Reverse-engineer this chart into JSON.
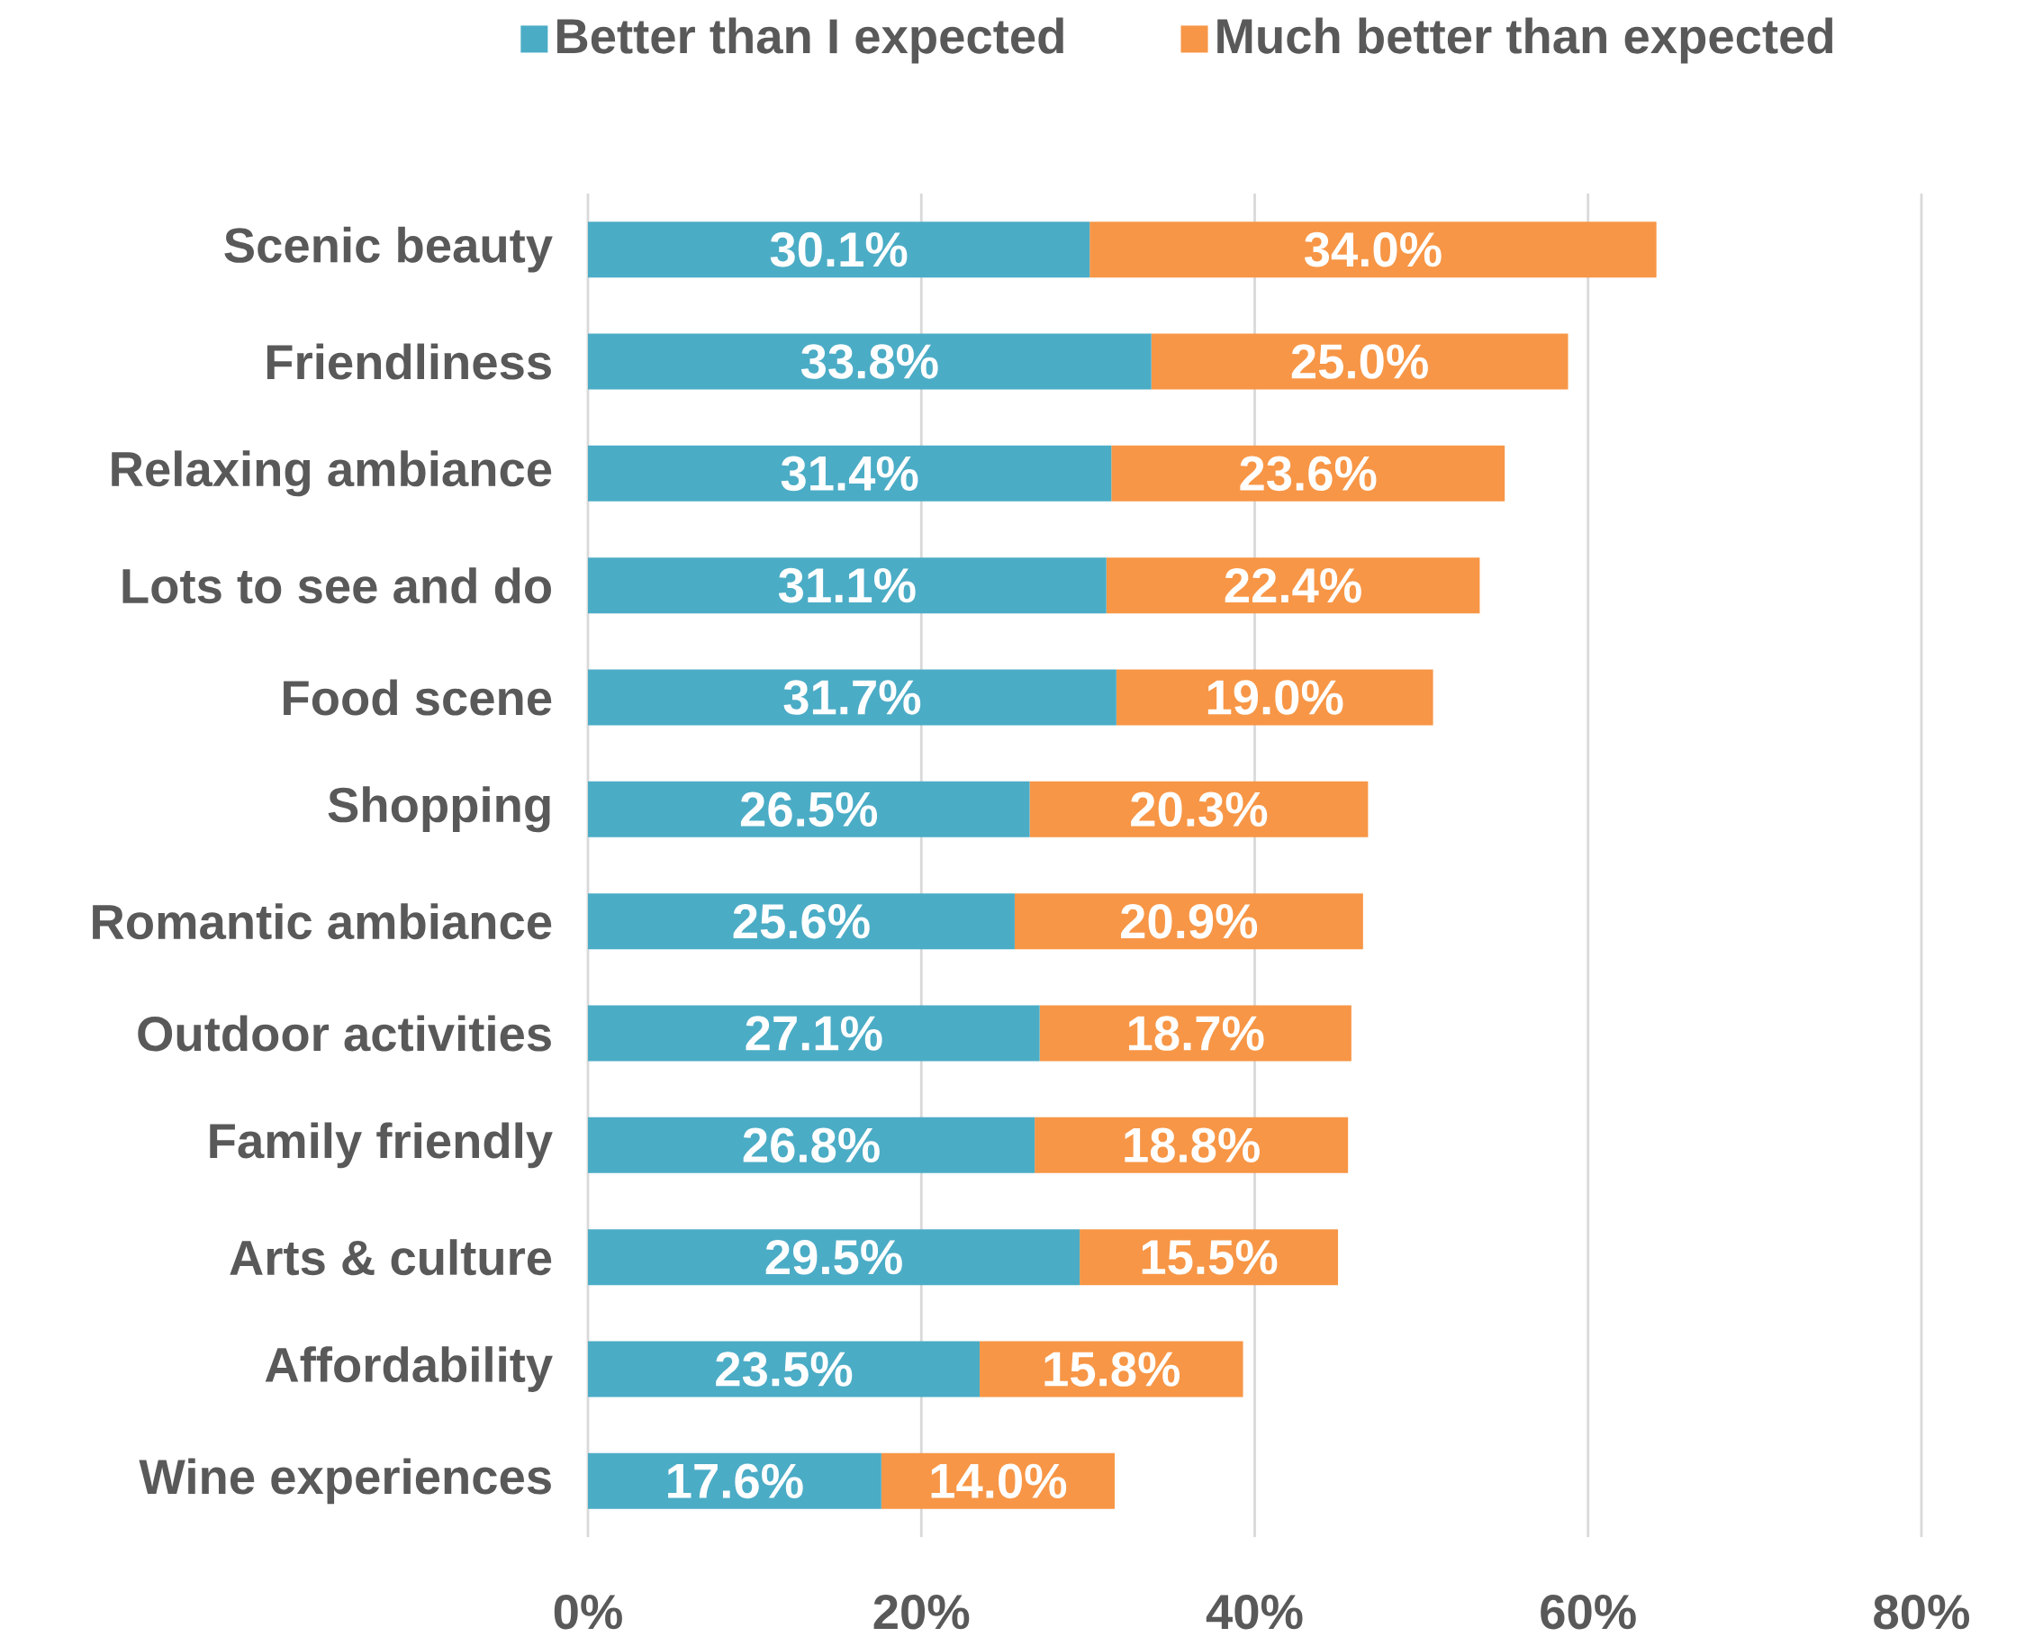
{
  "chart_data": {
    "type": "bar",
    "orientation": "horizontal",
    "stacked": true,
    "categories": [
      "Scenic beauty",
      "Friendliness",
      "Relaxing ambiance",
      "Lots to see and do",
      "Food scene",
      "Shopping",
      "Romantic ambiance",
      "Outdoor activities",
      "Family friendly",
      "Arts & culture",
      "Affordability",
      "Wine experiences"
    ],
    "series": [
      {
        "name": "Better than I expected",
        "color": "#4bacc6",
        "values": [
          30.1,
          33.8,
          31.4,
          31.1,
          31.7,
          26.5,
          25.6,
          27.1,
          26.8,
          29.5,
          23.5,
          17.6
        ],
        "value_labels": [
          "30.1%",
          "33.8%",
          "31.4%",
          "31.1%",
          "31.7%",
          "26.5%",
          "25.6%",
          "27.1%",
          "26.8%",
          "29.5%",
          "23.5%",
          "17.6%"
        ]
      },
      {
        "name": "Much better than expected",
        "color": "#f79646",
        "values": [
          34.0,
          25.0,
          23.6,
          22.4,
          19.0,
          20.3,
          20.9,
          18.7,
          18.8,
          15.5,
          15.8,
          14.0
        ],
        "value_labels": [
          "34.0%",
          "25.0%",
          "23.6%",
          "22.4%",
          "19.0%",
          "20.3%",
          "20.9%",
          "18.7%",
          "18.8%",
          "15.5%",
          "15.8%",
          "14.0%"
        ]
      }
    ],
    "xlim": [
      0,
      80
    ],
    "xticks": [
      {
        "value": 0,
        "label": "0%"
      },
      {
        "value": 20,
        "label": "20%"
      },
      {
        "value": 40,
        "label": "40%"
      },
      {
        "value": 60,
        "label": "60%"
      },
      {
        "value": 80,
        "label": "80%"
      }
    ],
    "grid": "x",
    "legend": "top"
  }
}
